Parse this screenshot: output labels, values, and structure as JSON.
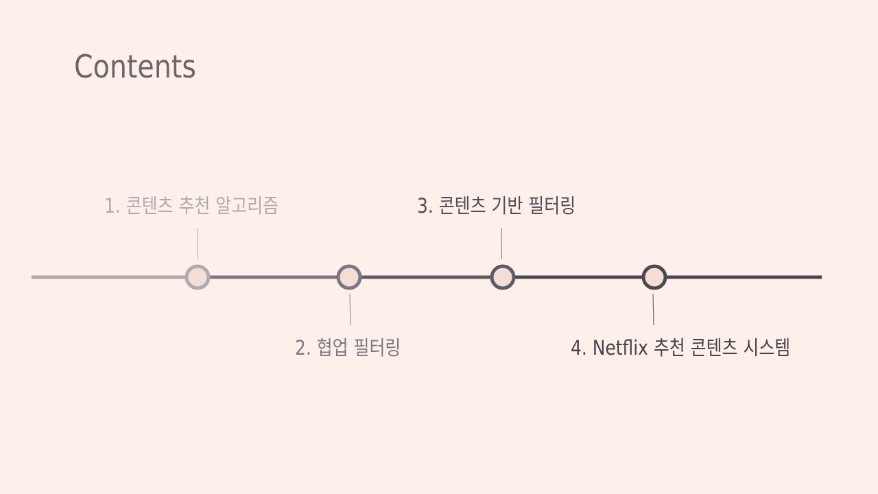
{
  "title": "Contents",
  "colors": {
    "background": "#fdf0ea",
    "title": "#6a6668",
    "node_fill": "#f4ddd4",
    "stage1": "#aeaab0",
    "stage2": "#7b7886",
    "stage3": "#5d5b66",
    "stage4": "#4a4850"
  },
  "items": [
    {
      "label": "1. 콘텐츠 추천 알고리즘"
    },
    {
      "label": "2. 협업 필터링"
    },
    {
      "label": "3. 콘텐츠 기반 필터링"
    },
    {
      "label": "4. Netflix 추천 콘텐츠 시스템"
    }
  ]
}
